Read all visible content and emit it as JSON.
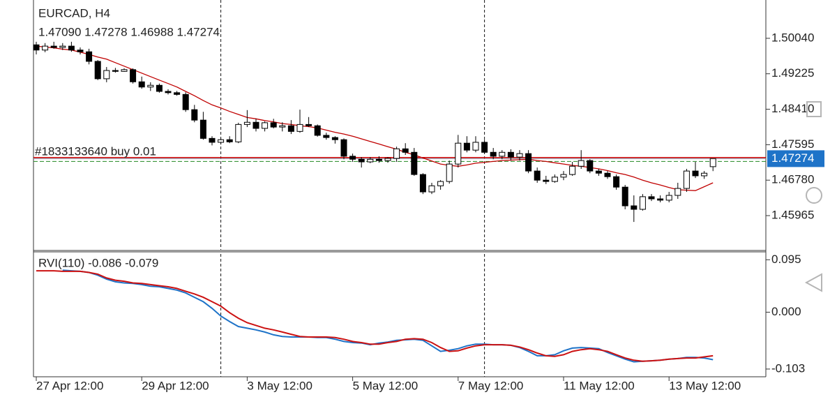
{
  "chart_data": [
    {
      "type": "candlestick",
      "title": "EURCAD, H4",
      "ohlc_text": "1.47090 1.47278 1.46988 1.47274",
      "categories": [
        "27 Apr 12:00",
        null,
        null,
        null,
        null,
        null,
        null,
        null,
        null,
        null,
        null,
        null,
        "29 Apr 12:00",
        null,
        null,
        null,
        null,
        null,
        null,
        null,
        null,
        null,
        null,
        null,
        "3 May 12:00",
        null,
        null,
        null,
        null,
        null,
        null,
        null,
        null,
        null,
        null,
        null,
        "5 May 12:00",
        null,
        null,
        null,
        null,
        null,
        null,
        null,
        null,
        null,
        null,
        null,
        "7 May 12:00",
        null,
        null,
        null,
        null,
        null,
        null,
        null,
        null,
        null,
        null,
        null,
        "11 May 12:00",
        null,
        null,
        null,
        null,
        null,
        null,
        null,
        null,
        null,
        null,
        null,
        "13 May 12:00",
        null,
        null,
        null,
        null,
        null
      ],
      "open": [
        1.4989,
        1.4977,
        1.4986,
        1.4983,
        1.4986,
        1.4977,
        1.4973,
        1.4951,
        1.4911,
        1.493,
        1.4928,
        1.4932,
        1.4904,
        1.4892,
        1.4896,
        1.4882,
        1.4879,
        1.4875,
        1.484,
        1.4816,
        1.4774,
        1.4765,
        1.4771,
        1.4766,
        1.4806,
        1.4811,
        1.4797,
        1.481,
        1.48,
        1.4803,
        1.479,
        1.4806,
        1.4803,
        1.4781,
        1.4776,
        1.4771,
        1.4733,
        1.4726,
        1.472,
        1.4726,
        1.4723,
        1.4728,
        1.475,
        1.4742,
        1.4691,
        1.4651,
        1.4665,
        1.4675,
        1.4715,
        1.4763,
        1.4747,
        1.4765,
        1.4742,
        1.4733,
        1.4742,
        1.4731,
        1.4739,
        1.4699,
        1.4678,
        1.4675,
        1.4685,
        1.4691,
        1.471,
        1.4723,
        1.4699,
        1.4694,
        1.4686,
        1.4662,
        1.4619,
        1.4611,
        1.464,
        1.4635,
        1.4632,
        1.4643,
        1.4659,
        1.4699,
        1.4688,
        1.4709
      ],
      "high": [
        1.4996,
        1.4993,
        1.4996,
        1.4993,
        1.4996,
        1.4983,
        1.498,
        1.4954,
        1.4938,
        1.4936,
        1.4935,
        1.4935,
        1.4916,
        1.4903,
        1.49,
        1.4887,
        1.4883,
        1.488,
        1.4851,
        1.4835,
        1.4779,
        1.4774,
        1.4779,
        1.481,
        1.4839,
        1.4819,
        1.4813,
        1.4819,
        1.4811,
        1.4816,
        1.484,
        1.4823,
        1.4806,
        1.4787,
        1.4779,
        1.4774,
        1.4739,
        1.4731,
        1.4731,
        1.4733,
        1.4731,
        1.4755,
        1.4763,
        1.4752,
        1.4694,
        1.4672,
        1.4678,
        1.4723,
        1.4782,
        1.4779,
        1.4779,
        1.4771,
        1.4752,
        1.4747,
        1.4749,
        1.4747,
        1.4747,
        1.4707,
        1.4688,
        1.4691,
        1.4699,
        1.472,
        1.4747,
        1.4726,
        1.4704,
        1.4699,
        1.4691,
        1.4667,
        1.4643,
        1.4646,
        1.4646,
        1.4643,
        1.4651,
        1.4672,
        1.4704,
        1.472,
        1.4699,
        1.47278
      ],
      "low": [
        1.4967,
        1.4972,
        1.498,
        1.4977,
        1.4973,
        1.4967,
        1.4944,
        1.4908,
        1.4903,
        1.4925,
        1.4927,
        1.49,
        1.4888,
        1.4883,
        1.4879,
        1.4875,
        1.4872,
        1.4835,
        1.4811,
        1.4771,
        1.4758,
        1.476,
        1.4763,
        1.4763,
        1.48,
        1.479,
        1.479,
        1.4797,
        1.479,
        1.4784,
        1.4787,
        1.48,
        1.4778,
        1.4771,
        1.4762,
        1.4726,
        1.472,
        1.4707,
        1.4717,
        1.4718,
        1.4718,
        1.472,
        1.4736,
        1.4688,
        1.4646,
        1.4646,
        1.4656,
        1.467,
        1.4707,
        1.4742,
        1.4742,
        1.4739,
        1.4726,
        1.4726,
        1.4723,
        1.4723,
        1.4694,
        1.4672,
        1.4669,
        1.4672,
        1.4678,
        1.4688,
        1.4704,
        1.4694,
        1.4688,
        1.4681,
        1.4656,
        1.4611,
        1.4582,
        1.4608,
        1.463,
        1.4627,
        1.4627,
        1.4635,
        1.4651,
        1.4683,
        1.4681,
        1.46988
      ],
      "close": [
        1.4977,
        1.4986,
        1.4983,
        1.4986,
        1.4977,
        1.4973,
        1.4951,
        1.4911,
        1.493,
        1.4928,
        1.4932,
        1.4904,
        1.4892,
        1.4896,
        1.4882,
        1.4879,
        1.4875,
        1.484,
        1.4816,
        1.4774,
        1.4765,
        1.4771,
        1.4766,
        1.4806,
        1.4811,
        1.4797,
        1.481,
        1.48,
        1.4803,
        1.479,
        1.4806,
        1.4803,
        1.4781,
        1.4776,
        1.4771,
        1.4733,
        1.4726,
        1.472,
        1.4726,
        1.4723,
        1.4728,
        1.475,
        1.4742,
        1.4691,
        1.4651,
        1.4665,
        1.4675,
        1.4715,
        1.4763,
        1.4747,
        1.4765,
        1.4742,
        1.4733,
        1.4742,
        1.4731,
        1.4739,
        1.4699,
        1.4678,
        1.4675,
        1.4685,
        1.4691,
        1.471,
        1.4723,
        1.4699,
        1.4694,
        1.4686,
        1.4662,
        1.4619,
        1.4611,
        1.464,
        1.4635,
        1.4632,
        1.4643,
        1.4659,
        1.4699,
        1.4688,
        1.4694,
        1.47274
      ],
      "ma": {
        "color": "#c00000",
        "values": [
          1.4986,
          1.4984,
          1.4982,
          1.4979,
          1.4977,
          1.4972,
          1.4967,
          1.4961,
          1.4956,
          1.4948,
          1.494,
          1.4932,
          1.4924,
          1.4916,
          1.4908,
          1.49,
          1.4892,
          1.4882,
          1.4872,
          1.4861,
          1.4851,
          1.4844,
          1.4836,
          1.4829,
          1.4822,
          1.4819,
          1.4815,
          1.4812,
          1.4808,
          1.4806,
          1.4803,
          1.4801,
          1.4798,
          1.4793,
          1.4788,
          1.4784,
          1.4779,
          1.4773,
          1.4767,
          1.4761,
          1.4755,
          1.4749,
          1.4742,
          1.4736,
          1.4729,
          1.4722,
          1.4715,
          1.4712,
          1.471,
          1.4713,
          1.4717,
          1.4719,
          1.4721,
          1.4723,
          1.4724,
          1.4725,
          1.4726,
          1.4723,
          1.4721,
          1.4718,
          1.4715,
          1.4712,
          1.471,
          1.4707,
          1.4704,
          1.47,
          1.4695,
          1.4691,
          1.4685,
          1.4678,
          1.4672,
          1.4667,
          1.4661,
          1.4656,
          1.4655,
          1.4654,
          1.4663,
          1.4672
        ]
      },
      "order": {
        "label": "#1833133640 buy 0.01",
        "price": 1.473,
        "color": "#cc0000"
      },
      "dashed_level": {
        "price": 1.4721,
        "color": "#228822"
      },
      "price_box_color": "#1e73c8",
      "ylim": [
        1.4518,
        1.5092
      ],
      "yticks": [
        {
          "value": 1.5004,
          "label": "1.50040"
        },
        1.49225,
        {
          "value": 1.4841,
          "label": "1.48410"
        },
        1.47595,
        {
          "value": 1.4678,
          "label": "1.46780"
        },
        1.45965
      ]
    },
    {
      "type": "line",
      "title": "RVI(110) -0.086 -0.079",
      "series": [
        {
          "color": "#1e73c8",
          "values": [
            null,
            null,
            null,
            0.076,
            0.075,
            0.074,
            0.072,
            0.067,
            0.06,
            0.055,
            0.053,
            0.052,
            0.05,
            0.047,
            0.046,
            0.043,
            0.04,
            0.035,
            0.027,
            0.019,
            0.007,
            -0.007,
            -0.017,
            -0.026,
            -0.029,
            -0.032,
            -0.036,
            -0.041,
            -0.044,
            -0.045,
            -0.045,
            -0.045,
            -0.046,
            -0.046,
            -0.049,
            -0.053,
            -0.055,
            -0.056,
            -0.059,
            -0.056,
            -0.054,
            -0.051,
            -0.05,
            -0.049,
            -0.051,
            -0.061,
            -0.071,
            -0.069,
            -0.066,
            -0.061,
            -0.058,
            -0.058,
            -0.059,
            -0.059,
            -0.06,
            -0.064,
            -0.071,
            -0.079,
            -0.079,
            -0.077,
            -0.07,
            -0.065,
            -0.064,
            -0.065,
            -0.066,
            -0.073,
            -0.079,
            -0.085,
            -0.09,
            -0.089,
            -0.088,
            -0.087,
            -0.085,
            -0.084,
            -0.082,
            -0.082,
            -0.083,
            -0.086
          ]
        },
        {
          "color": "#cc1111",
          "values": [
            0.075,
            0.075,
            0.075,
            0.074,
            0.074,
            0.074,
            0.072,
            0.069,
            0.062,
            0.058,
            0.056,
            0.053,
            0.052,
            0.05,
            0.048,
            0.046,
            0.043,
            0.038,
            0.033,
            0.027,
            0.019,
            0.011,
            -0.001,
            -0.011,
            -0.019,
            -0.024,
            -0.029,
            -0.032,
            -0.036,
            -0.04,
            -0.044,
            -0.045,
            -0.045,
            -0.045,
            -0.046,
            -0.049,
            -0.053,
            -0.055,
            -0.058,
            -0.058,
            -0.055,
            -0.053,
            -0.049,
            -0.048,
            -0.049,
            -0.055,
            -0.064,
            -0.071,
            -0.07,
            -0.065,
            -0.061,
            -0.059,
            -0.059,
            -0.059,
            -0.06,
            -0.063,
            -0.068,
            -0.074,
            -0.079,
            -0.08,
            -0.077,
            -0.071,
            -0.068,
            -0.066,
            -0.068,
            -0.071,
            -0.077,
            -0.083,
            -0.087,
            -0.089,
            -0.088,
            -0.087,
            -0.085,
            -0.084,
            -0.083,
            -0.083,
            -0.081,
            -0.079
          ]
        }
      ],
      "ylim": [
        -0.117,
        0.108
      ],
      "yticks": [
        0.095,
        {
          "value": 0,
          "label": "0.000"
        },
        -0.103
      ]
    }
  ]
}
